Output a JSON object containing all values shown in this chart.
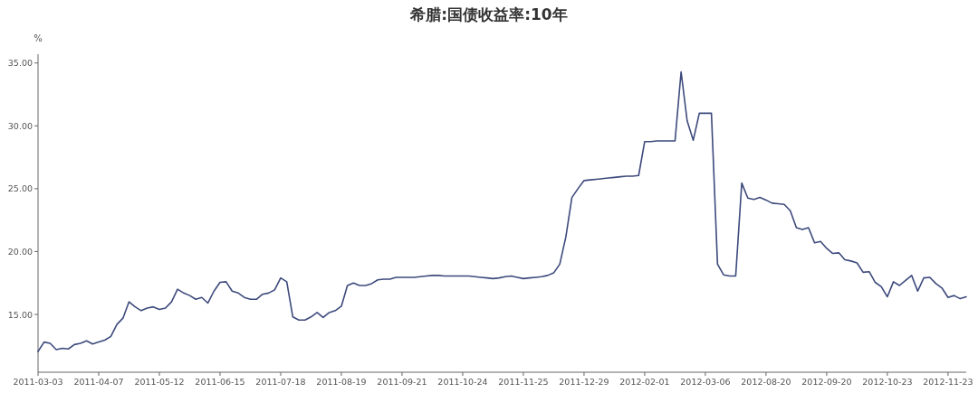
{
  "chart_data": {
    "type": "line",
    "title": "希腊:国债收益率:10年",
    "ylabel": "%",
    "categories": [
      "2011-03-03",
      null,
      null,
      null,
      null,
      null,
      null,
      null,
      null,
      null,
      "2011-04-07",
      null,
      null,
      null,
      null,
      null,
      null,
      null,
      null,
      null,
      "2011-05-12",
      null,
      null,
      null,
      null,
      null,
      null,
      null,
      null,
      null,
      "2011-06-15",
      null,
      null,
      null,
      null,
      null,
      null,
      null,
      null,
      null,
      "2011-07-18",
      null,
      null,
      null,
      null,
      null,
      null,
      null,
      null,
      null,
      "2011-08-19",
      null,
      null,
      null,
      null,
      null,
      null,
      null,
      null,
      null,
      "2011-09-21",
      null,
      null,
      null,
      null,
      null,
      null,
      null,
      null,
      null,
      "2011-10-24",
      null,
      null,
      null,
      null,
      null,
      null,
      null,
      null,
      null,
      "2011-11-25",
      null,
      null,
      null,
      null,
      null,
      null,
      null,
      null,
      null,
      "2011-12-29",
      null,
      null,
      null,
      null,
      null,
      null,
      null,
      null,
      null,
      "2012-02-01",
      null,
      null,
      null,
      null,
      null,
      null,
      null,
      null,
      null,
      "2012-03-06",
      null,
      null,
      null,
      null,
      null,
      null,
      null,
      null,
      null,
      "2012-08-20",
      null,
      null,
      null,
      null,
      null,
      null,
      null,
      null,
      null,
      "2012-09-20",
      null,
      null,
      null,
      null,
      null,
      null,
      null,
      null,
      null,
      "2012-10-23",
      null,
      null,
      null,
      null,
      null,
      null,
      null,
      null,
      null,
      "2012-11-23",
      null,
      null,
      null
    ],
    "series": [
      {
        "color": "#3d4a7c",
        "values": [
          12.05,
          12.8,
          12.7,
          12.2,
          12.3,
          12.25,
          12.6,
          12.7,
          12.9,
          12.65,
          12.8,
          12.95,
          13.25,
          14.2,
          14.7,
          16.0,
          15.6,
          15.3,
          15.5,
          15.6,
          15.4,
          15.5,
          16.0,
          17.0,
          16.7,
          16.5,
          16.2,
          16.35,
          15.9,
          16.85,
          17.55,
          17.6,
          16.85,
          16.7,
          16.35,
          16.2,
          16.2,
          16.6,
          16.7,
          16.95,
          17.9,
          17.6,
          14.8,
          14.55,
          14.55,
          14.8,
          15.15,
          14.75,
          15.15,
          15.3,
          15.65,
          17.3,
          17.5,
          17.3,
          17.3,
          17.45,
          17.75,
          17.8,
          17.8,
          17.95,
          17.95,
          17.95,
          17.95,
          18.0,
          18.05,
          18.1,
          18.1,
          18.05,
          18.05,
          18.05,
          18.05,
          18.05,
          18.0,
          17.95,
          17.9,
          17.85,
          17.9,
          18.0,
          18.05,
          17.95,
          17.85,
          17.9,
          17.95,
          18.0,
          18.1,
          18.3,
          19.0,
          21.15,
          24.3,
          25.0,
          25.65,
          25.7,
          25.75,
          25.8,
          25.85,
          25.9,
          25.95,
          26.0,
          26.0,
          26.05,
          28.75,
          28.75,
          28.8,
          28.8,
          28.8,
          28.8,
          34.3,
          30.4,
          28.85,
          31.0,
          31.0,
          31.0,
          19.0,
          18.15,
          18.05,
          18.05,
          25.45,
          24.25,
          24.15,
          24.3,
          24.1,
          23.85,
          23.8,
          23.75,
          23.25,
          21.9,
          21.75,
          21.9,
          20.7,
          20.8,
          20.25,
          19.85,
          19.9,
          19.35,
          19.25,
          19.1,
          18.35,
          18.4,
          17.55,
          17.2,
          16.4,
          17.6,
          17.3,
          17.7,
          18.1,
          16.85,
          17.9,
          17.95,
          17.45,
          17.1,
          16.35,
          16.5,
          16.25,
          16.4
        ]
      }
    ],
    "ylim": [
      10.4,
      35.7
    ],
    "yticks": [
      {
        "value": 15,
        "label": "15.00"
      },
      {
        "value": 20,
        "label": "20.00"
      },
      {
        "value": 25,
        "label": "25.00"
      },
      {
        "value": 30,
        "label": "30.00"
      },
      {
        "value": 35,
        "label": "35.00"
      }
    ],
    "grid": false,
    "marker": "none",
    "line_style": "solid"
  }
}
